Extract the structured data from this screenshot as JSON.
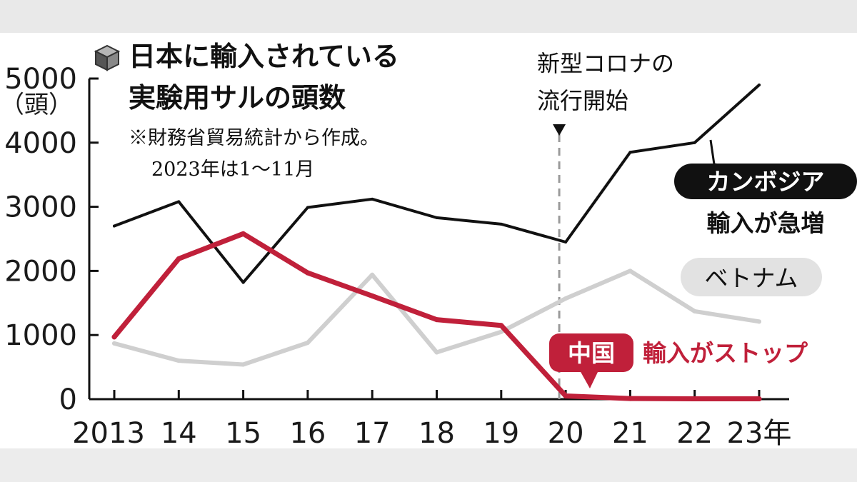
{
  "chart_data": {
    "type": "line",
    "title": "日本に輸入されている実験用サルの頭数",
    "title_lines": [
      "日本に輸入されている",
      "実験用サルの頭数"
    ],
    "note_lines": [
      "※財務省貿易統計から作成。",
      "2023年は1～11月"
    ],
    "y_unit": "（頭）",
    "ylim": [
      0,
      5000
    ],
    "y_ticks": [
      "0",
      "1000",
      "2000",
      "3000",
      "4000",
      "5000"
    ],
    "x": [
      2013,
      2014,
      2015,
      2016,
      2017,
      2018,
      2019,
      2020,
      2021,
      2022,
      2023
    ],
    "x_tick_labels": [
      "2013",
      "14",
      "15",
      "16",
      "17",
      "18",
      "19",
      "20",
      "21",
      "22",
      "23年"
    ],
    "series": [
      {
        "name": "カンボジア",
        "color": "#111111",
        "values": [
          2700,
          3080,
          1820,
          2990,
          3120,
          2830,
          2730,
          2450,
          3850,
          4000,
          4900
        ]
      },
      {
        "name": "ベトナム",
        "color": "#cfcfcf",
        "values": [
          870,
          600,
          540,
          880,
          1940,
          730,
          1050,
          1570,
          2000,
          1370,
          1210
        ]
      },
      {
        "name": "中国",
        "color": "#c0203a",
        "values": [
          970,
          2190,
          2580,
          1970,
          1610,
          1240,
          1150,
          50,
          10,
          5,
          5
        ]
      }
    ],
    "event": {
      "x": 2019.9,
      "label_lines": [
        "新型コロナの",
        "流行開始"
      ]
    },
    "annotations": {
      "cambodia": {
        "tag": "カンボジア",
        "text": "輸入が急増"
      },
      "vietnam": {
        "tag": "ベトナム"
      },
      "china": {
        "tag": "中国",
        "text": "輸入がストップ"
      }
    },
    "grid": false,
    "legend": "inline labels"
  },
  "colors": {
    "accent_red": "#c0203a",
    "cambodia": "#111111",
    "vietnam": "#cfcfcf"
  },
  "icons": {
    "title_bullet": "cube-icon"
  }
}
